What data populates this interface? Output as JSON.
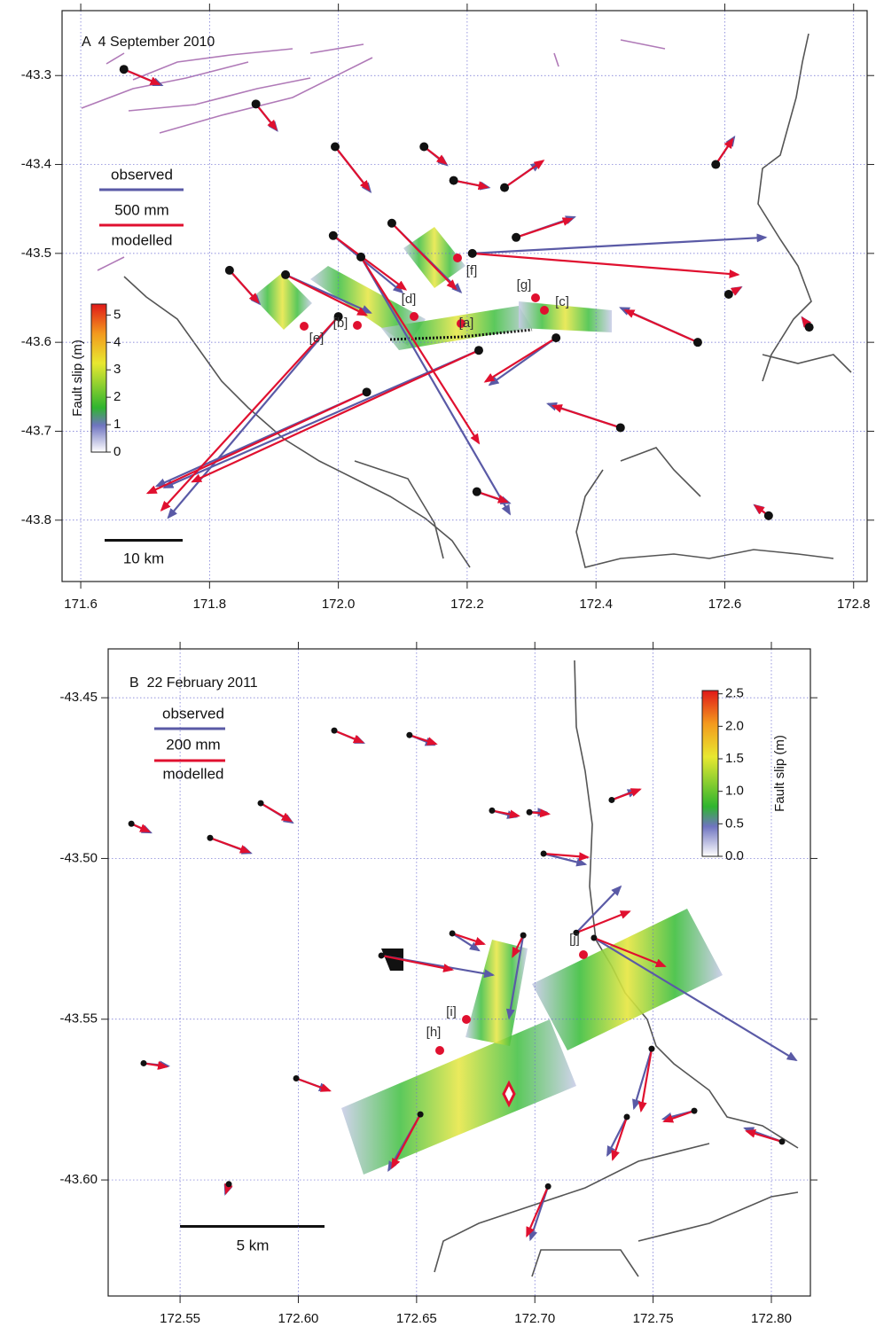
{
  "chart_data": [
    {
      "type": "vector",
      "title": "A  4 September 2010",
      "xlim": [
        171.571,
        172.821
      ],
      "ylim": [
        -43.869,
        -43.227
      ],
      "xticks": [
        171.6,
        171.8,
        {
          "value": 172,
          "label": "172.0"
        },
        172.2,
        172.4,
        172.6,
        172.8
      ],
      "yticks": [
        -43.3,
        -43.4,
        -43.5,
        -43.6,
        -43.7,
        -43.8
      ],
      "grid": true,
      "x": [
        171.667,
        171.872,
        171.995,
        172.133,
        172.179,
        172.258,
        172.276,
        172.208,
        172.083,
        171.992,
        171.831,
        171.918,
        172.035,
        172.0,
        172.044,
        172.218,
        172.215,
        172.438,
        172.338,
        172.558,
        172.606,
        172.586,
        172.668,
        172.731
      ],
      "y": [
        -43.293,
        -43.332,
        -43.38,
        -43.38,
        -43.418,
        -43.426,
        -43.482,
        -43.5,
        -43.466,
        -43.48,
        -43.519,
        -43.524,
        -43.504,
        -43.571,
        -43.656,
        -43.609,
        -43.768,
        -43.696,
        -43.595,
        -43.6,
        -43.546,
        -43.4,
        -43.795,
        -43.583
      ],
      "series": [
        {
          "name": "observed",
          "color": "#5a5aa6",
          "east": [
            226,
            126,
            210,
            137,
            210,
            210,
            347,
            1741,
            410,
            410,
            179,
            505,
            884,
            -1010,
            -1247,
            -1867,
            195,
            -431,
            -394,
            -458,
            74,
            110,
            -84,
            -42
          ],
          "north": [
            -95,
            -158,
            -268,
            -110,
            -42,
            147,
            121,
            95,
            -410,
            -337,
            -200,
            -226,
            -1526,
            -1194,
            -558,
            -815,
            -68,
            142,
            -279,
            205,
            42,
            163,
            63,
            58
          ]
        },
        {
          "name": "modelled",
          "color": "#e0102f",
          "east": [
            210,
            120,
            200,
            130,
            200,
            230,
            330,
            1578,
            380,
            430,
            170,
            480,
            700,
            -1050,
            -1300,
            -1700,
            180,
            -400,
            -420,
            -430,
            70,
            100,
            -80,
            -40
          ],
          "north": [
            -89,
            -150,
            -255,
            -100,
            -40,
            160,
            110,
            -126,
            -390,
            -320,
            -190,
            -240,
            -1105,
            -1150,
            -600,
            -780,
            -60,
            130,
            -260,
            190,
            40,
            150,
            60,
            55
          ]
        }
      ],
      "legend_scale": {
        "value": 500,
        "label": "500 mm"
      },
      "colorbar": {
        "label": "Fault slip (m)",
        "lim": [
          0,
          5.4
        ],
        "ticks": [
          0,
          1,
          2,
          3,
          4,
          5
        ]
      },
      "scale_bar": "10 km",
      "annotations": [
        "[a]",
        "[b]",
        "[c]",
        "[d]",
        "[e]",
        "[f]",
        "[g]"
      ]
    },
    {
      "type": "vector",
      "title": "B  22 February 2011",
      "xlim": [
        172.5196,
        172.8165
      ],
      "ylim": [
        -43.6361,
        -43.4348
      ],
      "xticks": [
        172.55,
        {
          "value": 172.6,
          "label": "172.60"
        },
        172.65,
        {
          "value": 172.7,
          "label": "172.70"
        },
        172.75,
        {
          "value": 172.8,
          "label": "172.80"
        }
      ],
      "yticks": [
        -43.45,
        {
          "value": -43.5,
          "label": "-43.50"
        },
        -43.55,
        {
          "value": -43.6,
          "label": "-43.60"
        }
      ],
      "grid": true,
      "x": [
        172.5294,
        172.5627,
        172.5841,
        172.6152,
        172.647,
        172.6819,
        172.6977,
        172.7325,
        172.7037,
        172.7175,
        172.725,
        172.6951,
        172.6651,
        172.6351,
        172.6516,
        172.7056,
        172.7389,
        172.7494,
        172.8045,
        172.7674,
        172.5706,
        172.5346,
        172.5991
      ],
      "y": [
        -43.4892,
        -43.4936,
        -43.4828,
        -43.4602,
        -43.4616,
        -43.4851,
        -43.4856,
        -43.4818,
        -43.4985,
        -43.5231,
        -43.5247,
        -43.5239,
        -43.5233,
        -43.5302,
        -43.5796,
        -43.602,
        -43.5804,
        -43.5592,
        -43.5881,
        -43.5785,
        -43.6013,
        -43.5637,
        -43.5684
      ],
      "series": [
        {
          "name": "observed",
          "color": "#5a5aa6",
          "east": [
            55,
            115,
            90,
            83,
            70,
            68,
            48,
            70,
            118,
            125,
            570,
            -40,
            75,
            315,
            -90,
            -50,
            -55,
            -50,
            -105,
            -88,
            -10,
            70,
            90
          ],
          "north": [
            -25,
            -43,
            -55,
            -35,
            -28,
            -18,
            0,
            28,
            -30,
            130,
            -345,
            -233,
            -48,
            -55,
            -158,
            -150,
            -108,
            -168,
            38,
            -23,
            -28,
            -8,
            -33
          ]
        },
        {
          "name": "modelled",
          "color": "#e0102f",
          "east": [
            50,
            110,
            85,
            80,
            75,
            75,
            55,
            80,
            125,
            150,
            200,
            -30,
            90,
            200,
            -80,
            -60,
            -40,
            -30,
            -100,
            -85,
            -8,
            65,
            95
          ],
          "north": [
            -22,
            -40,
            -50,
            -33,
            -25,
            -15,
            -5,
            30,
            -10,
            60,
            -80,
            -60,
            -30,
            -40,
            -150,
            -140,
            -120,
            -175,
            30,
            -30,
            -25,
            -10,
            -35
          ]
        }
      ],
      "legend_scale": {
        "value": 200,
        "label": "200 mm"
      },
      "colorbar": {
        "label": "Fault slip (m)",
        "lim": [
          0,
          2.55
        ],
        "ticks": [
          {
            "value": 0,
            "label": "0.0"
          },
          0.5,
          {
            "value": 1,
            "label": "1.0"
          },
          1.5,
          {
            "value": 2,
            "label": "2.0"
          },
          2.5
        ]
      },
      "scale_bar": "5 km",
      "annotations": [
        "[h]",
        "[i]",
        "[j]"
      ]
    }
  ]
}
